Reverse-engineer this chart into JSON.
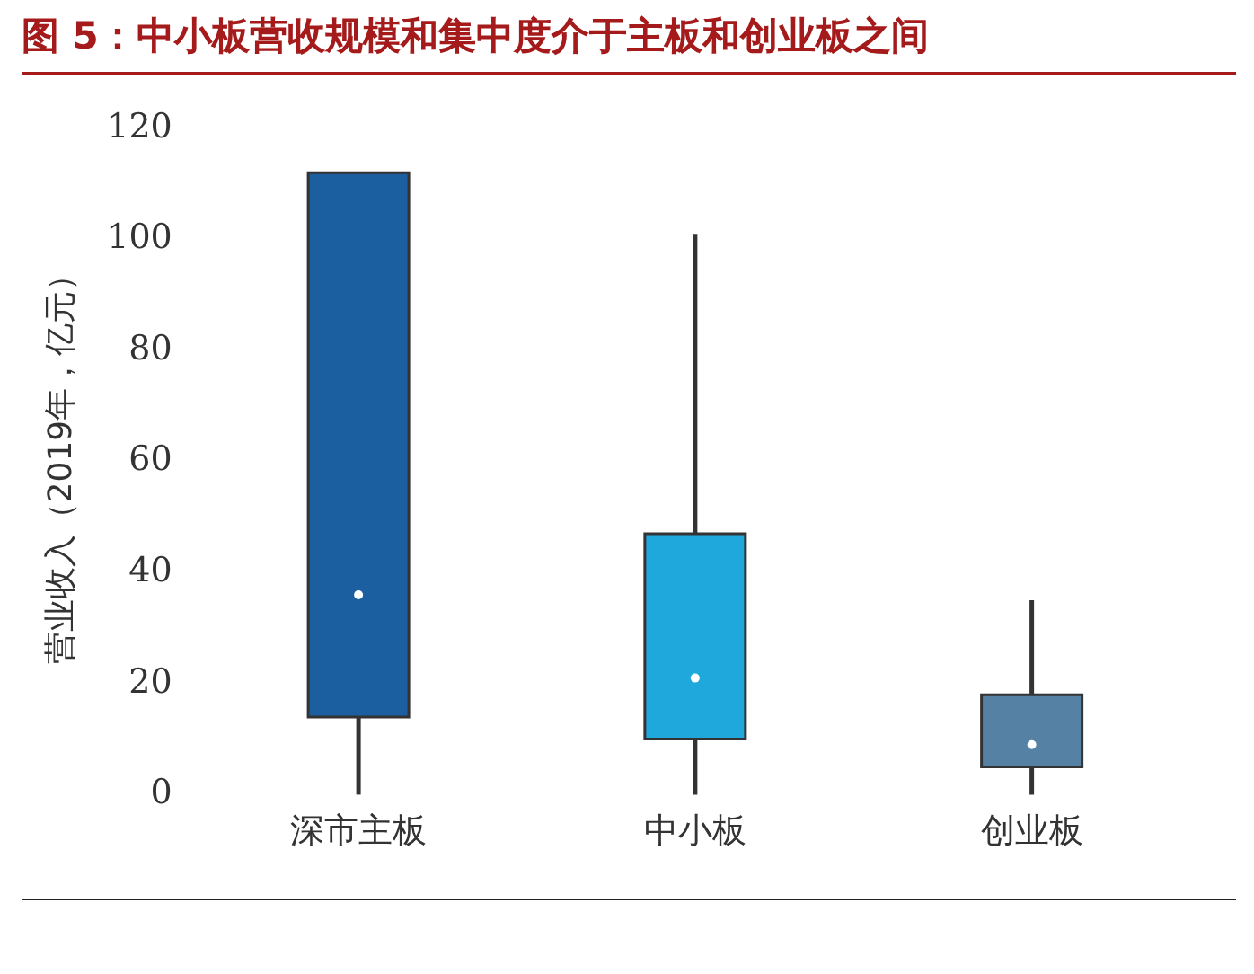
{
  "chart_data": {
    "type": "box",
    "title": "图 5：中小板营收规模和集中度介于主板和创业板之间",
    "ylabel": "营业收入（2019年，亿元）",
    "categories": [
      "深市主板",
      "中小板",
      "创业板"
    ],
    "colors": [
      "#1c5fa0",
      "#1fa8dc",
      "#5581a5"
    ],
    "boxes": [
      {
        "low": 0,
        "q1": 14,
        "median": 36,
        "q3": 112,
        "high": null
      },
      {
        "low": 0,
        "q1": 10,
        "median": 21,
        "q3": 47,
        "high": 101
      },
      {
        "low": 0,
        "q1": 5,
        "median": 9,
        "q3": 18,
        "high": 35
      }
    ],
    "ylim": [
      0,
      120
    ],
    "yticks": [
      0,
      20,
      40,
      60,
      80,
      100,
      120
    ],
    "grid": false,
    "legend": false
  }
}
